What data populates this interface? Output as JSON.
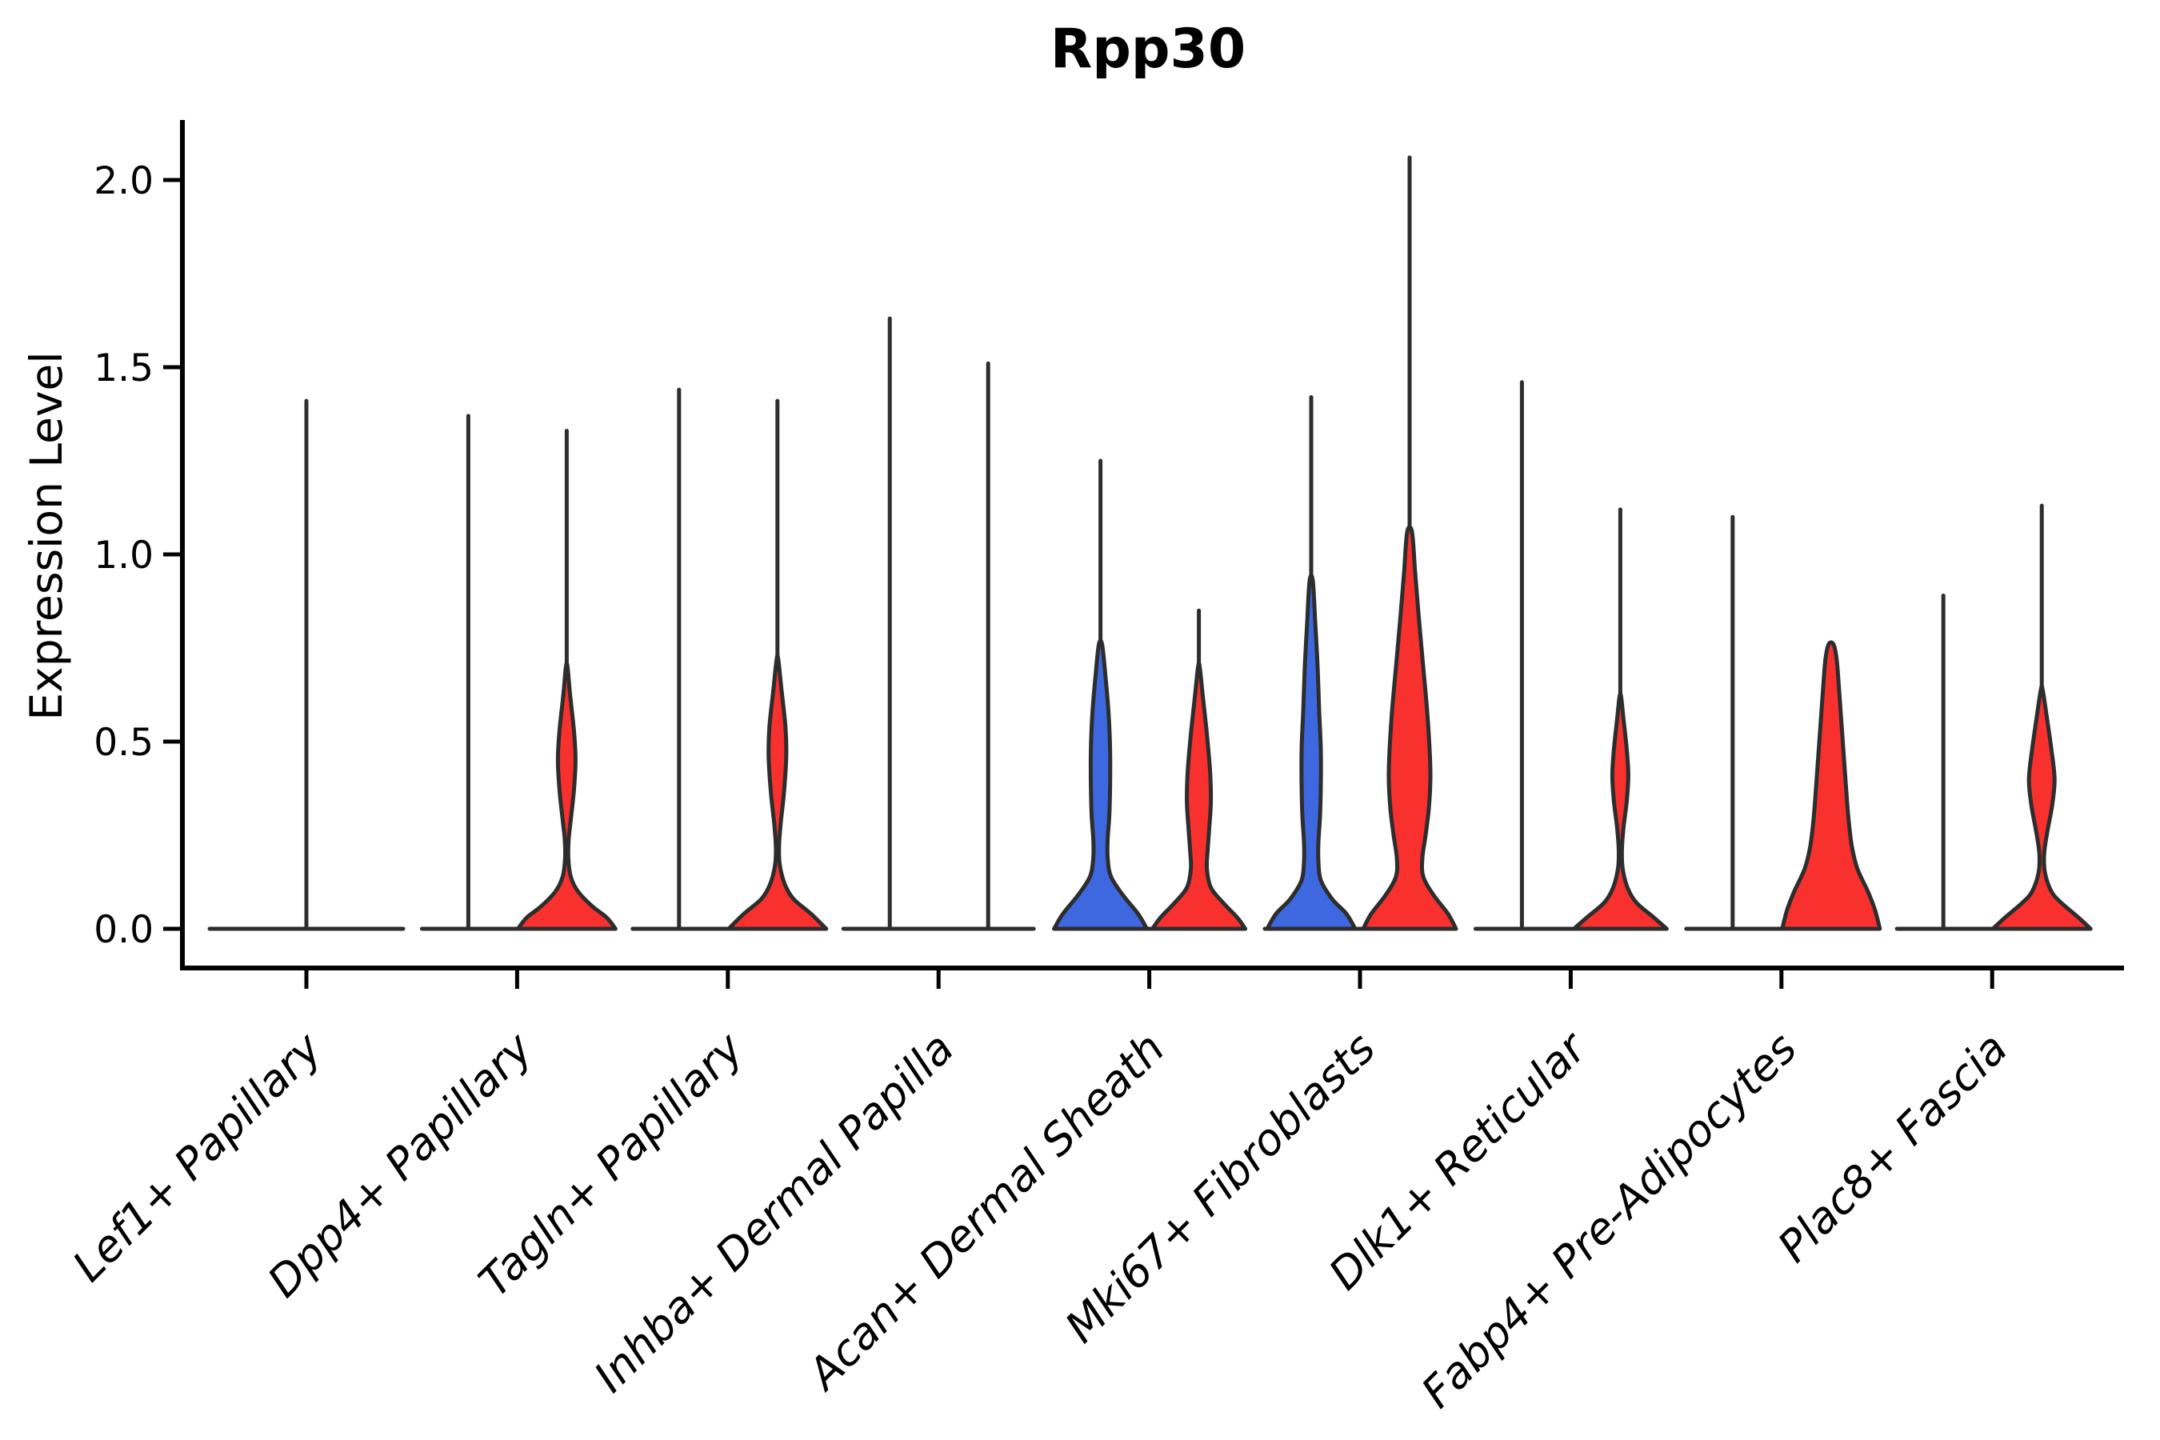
{
  "chart_data": {
    "type": "violin",
    "title": "Rpp30",
    "ylabel": "Expression Level",
    "y_axis": {
      "ticks": [
        "0.0",
        "0.5",
        "1.0",
        "1.5",
        "2.0"
      ],
      "ylim": [
        -0.09,
        2.16
      ],
      "grid": false
    },
    "legend": "none",
    "colors": {
      "red": "#F8312E",
      "blue": "#3E68DF",
      "outline": "#2D2D2D",
      "axis": "#000000"
    },
    "categories": [
      "Lef1+ Papillary",
      "Dpp4+ Papillary",
      "Tagln+ Papillary",
      "Inhba+ Dermal Papilla",
      "Acan+ Dermal Sheath",
      "Mki67+ Fibroblasts",
      "Dlk1+ Reticular",
      "Fabp4+ Pre-Adipocytes",
      "Plac8+ Fascia"
    ],
    "groups": [
      {
        "category": "Lef1+ Papillary",
        "violins": [
          {
            "side": "center",
            "color": null,
            "spike_top": 1.41,
            "profile": null
          }
        ]
      },
      {
        "category": "Dpp4+ Papillary",
        "violins": [
          {
            "side": "left",
            "color": null,
            "spike_top": 1.37,
            "profile": null
          },
          {
            "side": "right",
            "color": "red",
            "spike_top": 1.33,
            "profile": [
              [
                0.7,
                1
              ],
              [
                0.63,
                4
              ],
              [
                0.53,
                9
              ],
              [
                0.45,
                11
              ],
              [
                0.37,
                9
              ],
              [
                0.29,
                5
              ],
              [
                0.24,
                2.5
              ],
              [
                0.19,
                2
              ],
              [
                0.14,
                5
              ],
              [
                0.1,
                14
              ],
              [
                0.06,
                32
              ],
              [
                0.03,
                50
              ],
              [
                0.0,
                61
              ]
            ]
          }
        ]
      },
      {
        "category": "Tagln+ Papillary",
        "violins": [
          {
            "side": "left",
            "color": null,
            "spike_top": 1.44,
            "profile": null
          },
          {
            "side": "right",
            "color": "red",
            "spike_top": 1.41,
            "profile": [
              [
                0.72,
                1
              ],
              [
                0.64,
                5
              ],
              [
                0.54,
                10
              ],
              [
                0.46,
                11
              ],
              [
                0.36,
                8
              ],
              [
                0.28,
                4
              ],
              [
                0.22,
                2
              ],
              [
                0.17,
                3
              ],
              [
                0.12,
                9
              ],
              [
                0.08,
                20
              ],
              [
                0.04,
                42
              ],
              [
                0.0,
                61
              ]
            ]
          }
        ]
      },
      {
        "category": "Inhba+ Dermal Papilla",
        "violins": [
          {
            "side": "left",
            "color": null,
            "spike_top": 1.63,
            "profile": null
          },
          {
            "side": "right",
            "color": null,
            "spike_top": 1.51,
            "profile": null
          }
        ]
      },
      {
        "category": "Acan+ Dermal Sheath",
        "violins": [
          {
            "side": "left",
            "color": "blue",
            "spike_top": 1.25,
            "profile": [
              [
                0.76,
                2
              ],
              [
                0.68,
                6
              ],
              [
                0.58,
                10
              ],
              [
                0.48,
                12
              ],
              [
                0.38,
                12
              ],
              [
                0.3,
                11
              ],
              [
                0.24,
                9
              ],
              [
                0.19,
                9
              ],
              [
                0.14,
                13
              ],
              [
                0.09,
                28
              ],
              [
                0.04,
                47
              ],
              [
                0.0,
                58
              ]
            ]
          },
          {
            "side": "right",
            "color": "red",
            "spike_top": 0.85,
            "profile": [
              [
                0.7,
                1
              ],
              [
                0.62,
                5
              ],
              [
                0.52,
                10
              ],
              [
                0.42,
                14
              ],
              [
                0.34,
                15
              ],
              [
                0.27,
                13
              ],
              [
                0.21,
                11
              ],
              [
                0.16,
                10
              ],
              [
                0.11,
                15
              ],
              [
                0.07,
                30
              ],
              [
                0.03,
                48
              ],
              [
                0.0,
                58
              ]
            ]
          }
        ]
      },
      {
        "category": "Mki67+ Fibroblasts",
        "violins": [
          {
            "side": "left",
            "color": "blue",
            "spike_top": 1.42,
            "profile": [
              [
                0.93,
                2
              ],
              [
                0.82,
                5
              ],
              [
                0.7,
                8
              ],
              [
                0.58,
                10
              ],
              [
                0.48,
                12
              ],
              [
                0.38,
                12
              ],
              [
                0.3,
                11
              ],
              [
                0.23,
                9
              ],
              [
                0.18,
                9
              ],
              [
                0.13,
                12
              ],
              [
                0.08,
                26
              ],
              [
                0.04,
                44
              ],
              [
                0.0,
                55
              ]
            ]
          },
          {
            "side": "right",
            "color": "red",
            "spike_top": 2.06,
            "profile": [
              [
                1.06,
                3
              ],
              [
                0.95,
                7
              ],
              [
                0.82,
                12
              ],
              [
                0.7,
                17
              ],
              [
                0.58,
                22
              ],
              [
                0.48,
                25
              ],
              [
                0.4,
                26
              ],
              [
                0.32,
                24
              ],
              [
                0.25,
                20
              ],
              [
                0.19,
                16
              ],
              [
                0.14,
                17
              ],
              [
                0.09,
                30
              ],
              [
                0.04,
                48
              ],
              [
                0.0,
                58
              ]
            ]
          }
        ]
      },
      {
        "category": "Dlk1+ Reticular",
        "violins": [
          {
            "side": "left",
            "color": null,
            "spike_top": 1.46,
            "profile": null
          },
          {
            "side": "right",
            "color": "red",
            "spike_top": 1.12,
            "profile": [
              [
                0.62,
                1
              ],
              [
                0.56,
                4
              ],
              [
                0.48,
                8
              ],
              [
                0.41,
                10
              ],
              [
                0.34,
                8
              ],
              [
                0.27,
                4
              ],
              [
                0.21,
                2
              ],
              [
                0.16,
                3
              ],
              [
                0.11,
                9
              ],
              [
                0.07,
                20
              ],
              [
                0.03,
                42
              ],
              [
                0.0,
                58
              ]
            ]
          }
        ]
      },
      {
        "category": "Fabp4+ Pre-Adipocytes",
        "violins": [
          {
            "side": "left",
            "color": null,
            "spike_top": 1.1,
            "profile": null
          },
          {
            "side": "right",
            "color": "red",
            "spike_top": null,
            "profile": [
              [
                0.76,
                3
              ],
              [
                0.72,
                7
              ],
              [
                0.64,
                10
              ],
              [
                0.55,
                13
              ],
              [
                0.46,
                16
              ],
              [
                0.37,
                19
              ],
              [
                0.29,
                22
              ],
              [
                0.22,
                26
              ],
              [
                0.16,
                33
              ],
              [
                0.1,
                46
              ],
              [
                0.05,
                55
              ],
              [
                0.0,
                61
              ]
            ]
          }
        ]
      },
      {
        "category": "Plac8+ Fascia",
        "violins": [
          {
            "side": "left",
            "color": null,
            "spike_top": 0.89,
            "profile": null
          },
          {
            "side": "right",
            "color": "red",
            "spike_top": 1.13,
            "profile": [
              [
                0.64,
                1
              ],
              [
                0.57,
                6
              ],
              [
                0.48,
                12
              ],
              [
                0.4,
                16
              ],
              [
                0.33,
                13
              ],
              [
                0.26,
                7
              ],
              [
                0.2,
                3
              ],
              [
                0.15,
                4
              ],
              [
                0.1,
                12
              ],
              [
                0.07,
                24
              ],
              [
                0.03,
                46
              ],
              [
                0.0,
                61
              ]
            ]
          }
        ]
      }
    ]
  }
}
